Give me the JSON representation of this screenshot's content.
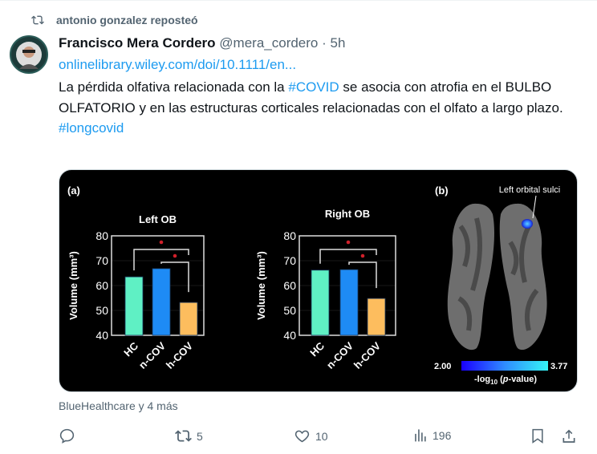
{
  "repost": {
    "label": "antonio gonzalez reposteó",
    "icon": "repost-icon"
  },
  "author": {
    "name": "Francisco Mera Cordero",
    "handle": "@mera_cordero",
    "separator": "·",
    "time": "5h"
  },
  "tweet": {
    "link": "onlinelibrary.wiley.com/doi/10.1111/en...",
    "text_1": "La pérdida olfativa relacionada con la ",
    "hashtag_1": "#COVID",
    "text_2": " se asocia con atrofia en el BULBO OLFATORIO y en las estructuras corticales relacionadas con el olfato a largo plazo.",
    "hashtag_2": "#longcovid"
  },
  "media": {
    "panel_a": "(a)",
    "panel_b": "(b)",
    "brain_label": "Left orbital sulci",
    "colorbar": {
      "min": "2.00",
      "max": "3.77",
      "label_prefix": "-log",
      "label_sub": "10",
      "label_p": "p",
      "label_suffix": "-value)",
      "label_open": " (",
      "colors": [
        "#1a00ff",
        "#2f8cff",
        "#35f5f5"
      ]
    }
  },
  "chart_data": [
    {
      "type": "bar",
      "title": "Left OB",
      "ylabel": "Volume (mm³)",
      "categories": [
        "HC",
        "n-COV",
        "h-COV"
      ],
      "values": [
        63.5,
        66.8,
        53.2
      ],
      "ylim": [
        40,
        80
      ],
      "yticks": [
        40,
        50,
        60,
        70,
        80
      ],
      "colors": [
        "#5ff0c4",
        "#1e8bf5",
        "#fdbd5e"
      ],
      "significance": [
        [
          "HC",
          "h-COV"
        ],
        [
          "n-COV",
          "h-COV"
        ]
      ],
      "grid": true
    },
    {
      "type": "bar",
      "title": "Right OB",
      "ylabel": "Volume (mm³)",
      "categories": [
        "HC",
        "n-COV",
        "h-COV"
      ],
      "values": [
        66.2,
        66.4,
        54.8
      ],
      "ylim": [
        40,
        80
      ],
      "yticks": [
        40,
        50,
        60,
        70,
        80
      ],
      "colors": [
        "#5ff0c4",
        "#1e8bf5",
        "#fdbd5e"
      ],
      "significance": [
        [
          "HC",
          "h-COV"
        ],
        [
          "n-COV",
          "h-COV"
        ]
      ],
      "grid": true
    }
  ],
  "context": "BlueHealthcare y 4 más",
  "actions": {
    "reply": "",
    "reposts": "5",
    "likes": "10",
    "views": "196"
  }
}
